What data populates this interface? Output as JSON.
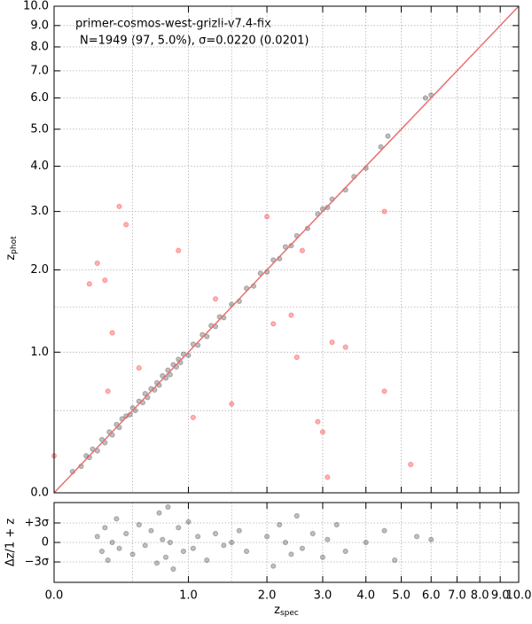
{
  "chart_data": [
    {
      "type": "scatter",
      "xscale": "log1p",
      "yscale": "log1p",
      "grid": true,
      "one_to_one": true,
      "line_color": "#e87070",
      "title": "primer-cosmos-west-grizli-v7.4-fix",
      "subtitle": "N=1949 (97,  5.0%), σ=0.0220 (0.0201)",
      "ylabel": "z",
      "ylabel_sub": "phot",
      "xlim": [
        0,
        10
      ],
      "ylim": [
        0,
        10
      ],
      "minor_ticks": [
        0.5,
        1.5
      ],
      "yticks": [
        {
          "value": 0,
          "label": "0.0"
        },
        {
          "value": 1,
          "label": "1.0"
        },
        {
          "value": 2,
          "label": "2.0"
        },
        {
          "value": 3,
          "label": "3.0"
        },
        {
          "value": 4,
          "label": "4.0"
        },
        {
          "value": 5,
          "label": "5.0"
        },
        {
          "value": 6,
          "label": "6.0"
        },
        {
          "value": 7,
          "label": "7.0"
        },
        {
          "value": 8,
          "label": "8.0"
        },
        {
          "value": 9,
          "label": "9.0"
        },
        {
          "value": 10,
          "label": "10.0"
        }
      ],
      "xticks": [
        0,
        1,
        2,
        3,
        4,
        5,
        6,
        7,
        8,
        9,
        10
      ],
      "series": [
        {
          "color": "#000000",
          "opacity": 0.25,
          "x": [
            0.1,
            0.15,
            0.18,
            0.2,
            0.22,
            0.25,
            0.28,
            0.3,
            0.33,
            0.35,
            0.38,
            0.4,
            0.42,
            0.45,
            0.48,
            0.5,
            0.52,
            0.55,
            0.58,
            0.6,
            0.62,
            0.65,
            0.68,
            0.7,
            0.72,
            0.75,
            0.78,
            0.8,
            0.82,
            0.85,
            0.88,
            0.9,
            0.92,
            0.95,
            1.0,
            1.05,
            1.1,
            1.15,
            1.2,
            1.25,
            1.3,
            1.35,
            1.4,
            1.5,
            1.6,
            1.7,
            1.8,
            1.9,
            2.0,
            2.1,
            2.2,
            2.3,
            2.4,
            2.5,
            2.7,
            2.9,
            3.0,
            3.1,
            3.2,
            3.5,
            3.7,
            4.0,
            4.4,
            4.6,
            5.8,
            6.0
          ],
          "values": [
            0.11,
            0.14,
            0.2,
            0.19,
            0.24,
            0.23,
            0.3,
            0.28,
            0.35,
            0.33,
            0.4,
            0.38,
            0.44,
            0.46,
            0.47,
            0.52,
            0.5,
            0.57,
            0.56,
            0.63,
            0.6,
            0.67,
            0.66,
            0.72,
            0.7,
            0.78,
            0.76,
            0.83,
            0.79,
            0.88,
            0.86,
            0.93,
            0.9,
            0.98,
            0.97,
            1.08,
            1.07,
            1.18,
            1.16,
            1.28,
            1.27,
            1.38,
            1.37,
            1.53,
            1.57,
            1.74,
            1.77,
            1.95,
            1.97,
            2.15,
            2.17,
            2.36,
            2.38,
            2.55,
            2.68,
            2.95,
            3.05,
            3.08,
            3.25,
            3.45,
            3.75,
            3.95,
            4.5,
            4.8,
            6.0,
            6.1
          ]
        },
        {
          "color": "#ff0000",
          "opacity": 0.3,
          "x": [
            0.2,
            0.25,
            0.3,
            0.35,
            0.32,
            0.4,
            0.45,
            0.55,
            0.9,
            1.05,
            1.3,
            1.5,
            2.0,
            2.1,
            2.4,
            2.5,
            2.6,
            3.0,
            3.2,
            3.5,
            4.5,
            4.5,
            5.3,
            3.1,
            0.0,
            2.9
          ],
          "values": [
            1.8,
            2.1,
            1.85,
            1.2,
            0.65,
            3.1,
            2.75,
            0.85,
            2.3,
            0.45,
            1.6,
            0.55,
            2.9,
            1.3,
            1.4,
            0.95,
            2.3,
            0.35,
            1.1,
            1.05,
            3.0,
            0.65,
            0.15,
            0.08,
            0.2,
            0.42
          ]
        }
      ]
    },
    {
      "type": "scatter",
      "xscale": "log1p",
      "grid": true,
      "zero_line": true,
      "ylabel": "Δz/1 + z",
      "xlabel": "z",
      "xlabel_sub": "spec",
      "xlim": [
        0,
        10
      ],
      "ylim": [
        -0.135,
        0.135
      ],
      "minor_ticks": [
        0.5,
        1.5
      ],
      "yticks": [
        {
          "value": 0.066,
          "label": "+3σ"
        },
        0,
        {
          "value": -0.066,
          "label": "−3σ"
        }
      ],
      "xticks": [
        {
          "value": 0,
          "label": "0.0"
        },
        {
          "value": 1,
          "label": "1.0"
        },
        {
          "value": 2,
          "label": "2.0"
        },
        {
          "value": 3,
          "label": "3.0"
        },
        {
          "value": 4,
          "label": "4.0"
        },
        {
          "value": 5,
          "label": "5.0"
        },
        {
          "value": 6,
          "label": "6.0"
        },
        {
          "value": 7,
          "label": "7.0"
        },
        {
          "value": 8,
          "label": "8.0"
        },
        {
          "value": 9,
          "label": "9.0"
        },
        {
          "value": 10,
          "label": "10.0"
        }
      ],
      "series": [
        {
          "color": "#000000",
          "opacity": 0.25,
          "x": [
            0.25,
            0.28,
            0.3,
            0.32,
            0.35,
            0.38,
            0.4,
            0.45,
            0.5,
            0.55,
            0.6,
            0.65,
            0.7,
            0.72,
            0.75,
            0.78,
            0.8,
            0.82,
            0.85,
            0.9,
            0.95,
            1.0,
            1.05,
            1.1,
            1.2,
            1.3,
            1.4,
            1.5,
            1.6,
            1.7,
            2.0,
            2.1,
            2.2,
            2.3,
            2.4,
            2.5,
            2.6,
            2.8,
            3.0,
            3.1,
            3.3,
            3.5,
            4.0,
            4.5,
            4.8,
            5.5,
            6.0
          ],
          "values": [
            0.02,
            -0.03,
            0.05,
            -0.06,
            0.0,
            0.08,
            -0.02,
            0.03,
            -0.04,
            0.06,
            -0.01,
            0.04,
            -0.07,
            0.1,
            0.01,
            -0.05,
            0.12,
            0.0,
            -0.09,
            0.05,
            -0.03,
            0.07,
            -0.02,
            0.02,
            -0.06,
            0.03,
            -0.01,
            0.0,
            0.04,
            -0.03,
            0.02,
            -0.08,
            0.06,
            0.0,
            -0.04,
            0.09,
            -0.02,
            0.03,
            -0.05,
            0.01,
            0.06,
            -0.03,
            0.0,
            0.04,
            -0.06,
            0.02,
            0.01
          ]
        }
      ]
    }
  ]
}
